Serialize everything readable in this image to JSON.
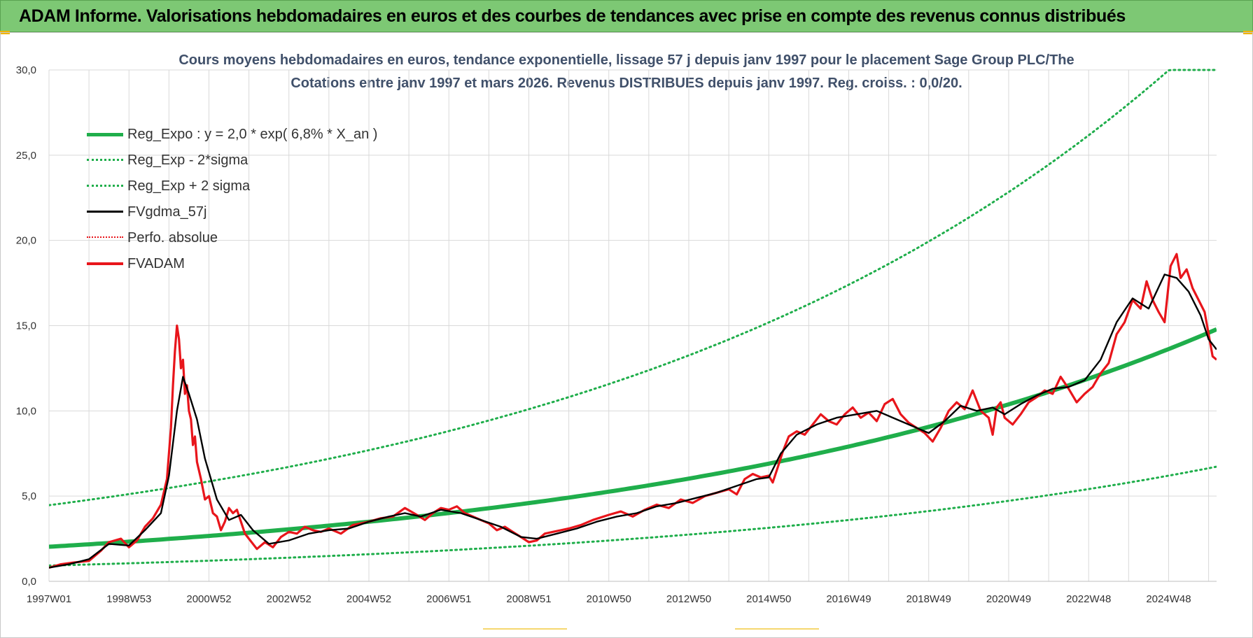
{
  "header": {
    "title": "ADAM Informe. Valorisations hebdomadaires en euros et des courbes de tendances avec prise en compte des revenus connus distribués"
  },
  "colors": {
    "banner": "#7dc874",
    "trend": "#1fae4b",
    "smooth": "#000000",
    "adam": "#e8151b",
    "perf": "#e8151b",
    "grid": "#d9d9d9"
  },
  "chart_data": {
    "type": "line",
    "title_line1": "Cours moyens hebdomadaires en euros, tendance exponentielle, lissage 57 j depuis janv 1997 pour le placement Sage Group PLC/The",
    "title_line2": "Cotations entre janv 1997 et mars 2026. Revenus DISTRIBUES depuis janv 1997.  Reg. croiss. : 0,0/20.",
    "xlabel": "",
    "ylabel": "",
    "xlim": [
      1997.0,
      2026.2
    ],
    "ylim": [
      0,
      30
    ],
    "y_ticks": [
      "0,0",
      "5,0",
      "10,0",
      "15,0",
      "20,0",
      "25,0",
      "30,0"
    ],
    "x_ticks": [
      {
        "label": "1997W01",
        "x": 1997.0
      },
      {
        "label": "1998W53",
        "x": 1999.0
      },
      {
        "label": "2000W52",
        "x": 2001.0
      },
      {
        "label": "2002W52",
        "x": 2003.0
      },
      {
        "label": "2004W52",
        "x": 2005.0
      },
      {
        "label": "2006W51",
        "x": 2007.0
      },
      {
        "label": "2008W51",
        "x": 2009.0
      },
      {
        "label": "2010W50",
        "x": 2011.0
      },
      {
        "label": "2012W50",
        "x": 2013.0
      },
      {
        "label": "2014W50",
        "x": 2015.0
      },
      {
        "label": "2016W49",
        "x": 2017.0
      },
      {
        "label": "2018W49",
        "x": 2019.0
      },
      {
        "label": "2020W49",
        "x": 2021.0
      },
      {
        "label": "2022W48",
        "x": 2023.0
      },
      {
        "label": "2024W48",
        "x": 2025.0
      }
    ],
    "legend": [
      {
        "name": "Reg_Expo : y = 2,0 * exp( 6,8% *  X_an )",
        "style": "trend-solid"
      },
      {
        "name": "Reg_Exp - 2*sigma",
        "style": "trend-dotted"
      },
      {
        "name": "Reg_Exp + 2 sigma",
        "style": "trend-dotted"
      },
      {
        "name": "FVgdma_57j",
        "style": "black-solid"
      },
      {
        "name": "Perfo. absolue",
        "style": "red-dotted"
      },
      {
        "name": "FVADAM",
        "style": "red-solid"
      }
    ],
    "trend": {
      "a": 2.03,
      "rate": 0.068,
      "lower_factor": 0.455,
      "upper_factor": 2.2
    },
    "series": [
      {
        "name": "FVADAM",
        "x": [
          1997.0,
          1997.3,
          1997.6,
          1998.0,
          1998.3,
          1998.5,
          1998.8,
          1999.0,
          1999.2,
          1999.4,
          1999.6,
          1999.8,
          1999.95,
          2000.05,
          2000.1,
          2000.15,
          2000.2,
          2000.25,
          2000.3,
          2000.35,
          2000.4,
          2000.45,
          2000.5,
          2000.55,
          2000.6,
          2000.65,
          2000.7,
          2000.8,
          2000.9,
          2001.0,
          2001.1,
          2001.2,
          2001.3,
          2001.4,
          2001.5,
          2001.6,
          2001.7,
          2001.8,
          2001.9,
          2002.0,
          2002.2,
          2002.4,
          2002.6,
          2002.8,
          2003.0,
          2003.2,
          2003.4,
          2003.6,
          2003.8,
          2004.0,
          2004.3,
          2004.6,
          2005.0,
          2005.3,
          2005.6,
          2005.9,
          2006.2,
          2006.4,
          2006.6,
          2006.8,
          2007.0,
          2007.2,
          2007.4,
          2007.6,
          2007.8,
          2008.0,
          2008.2,
          2008.4,
          2008.6,
          2008.8,
          2009.0,
          2009.2,
          2009.4,
          2009.6,
          2009.8,
          2010.0,
          2010.3,
          2010.6,
          2011.0,
          2011.3,
          2011.6,
          2011.9,
          2012.2,
          2012.5,
          2012.8,
          2013.1,
          2013.4,
          2013.7,
          2014.0,
          2014.2,
          2014.4,
          2014.6,
          2014.8,
          2015.0,
          2015.1,
          2015.2,
          2015.35,
          2015.5,
          2015.7,
          2015.9,
          2016.1,
          2016.3,
          2016.5,
          2016.7,
          2016.9,
          2017.1,
          2017.3,
          2017.5,
          2017.7,
          2017.9,
          2018.1,
          2018.3,
          2018.5,
          2018.7,
          2018.9,
          2019.1,
          2019.3,
          2019.5,
          2019.7,
          2019.9,
          2020.1,
          2020.3,
          2020.5,
          2020.6,
          2020.7,
          2020.8,
          2020.9,
          2021.1,
          2021.3,
          2021.5,
          2021.7,
          2021.9,
          2022.1,
          2022.3,
          2022.5,
          2022.7,
          2022.9,
          2023.1,
          2023.3,
          2023.5,
          2023.7,
          2023.9,
          2024.1,
          2024.3,
          2024.45,
          2024.6,
          2024.75,
          2024.9,
          2025.05,
          2025.2,
          2025.3,
          2025.45,
          2025.6,
          2025.75,
          2025.9,
          2026.0,
          2026.1,
          2026.2
        ],
        "values": [
          0.8,
          1.0,
          1.1,
          1.2,
          1.8,
          2.3,
          2.5,
          2.0,
          2.4,
          3.2,
          3.7,
          4.5,
          6.0,
          9.0,
          11.5,
          13.5,
          15.0,
          14.2,
          12.5,
          13.0,
          11.0,
          11.5,
          10.0,
          9.5,
          8.0,
          8.5,
          7.0,
          6.0,
          4.8,
          5.0,
          4.0,
          3.8,
          3.0,
          3.5,
          4.3,
          4.0,
          4.2,
          3.5,
          2.8,
          2.5,
          1.9,
          2.3,
          2.0,
          2.6,
          2.9,
          2.8,
          3.2,
          3.0,
          2.9,
          3.1,
          2.8,
          3.3,
          3.5,
          3.7,
          3.8,
          4.3,
          3.9,
          3.6,
          4.0,
          4.3,
          4.2,
          4.4,
          4.0,
          3.8,
          3.6,
          3.4,
          3.0,
          3.2,
          2.9,
          2.6,
          2.3,
          2.4,
          2.8,
          2.9,
          3.0,
          3.1,
          3.3,
          3.6,
          3.9,
          4.1,
          3.8,
          4.2,
          4.5,
          4.3,
          4.8,
          4.6,
          5.0,
          5.2,
          5.4,
          5.1,
          6.0,
          6.3,
          6.1,
          6.2,
          5.8,
          6.5,
          7.6,
          8.5,
          8.8,
          8.6,
          9.2,
          9.8,
          9.4,
          9.2,
          9.8,
          10.2,
          9.6,
          9.9,
          9.4,
          10.4,
          10.7,
          9.8,
          9.3,
          9.0,
          8.7,
          8.2,
          9.0,
          10.0,
          10.5,
          10.1,
          11.2,
          10.0,
          9.6,
          8.6,
          10.2,
          10.5,
          9.6,
          9.2,
          9.8,
          10.5,
          10.8,
          11.2,
          11.0,
          12.0,
          11.3,
          10.5,
          11.0,
          11.4,
          12.2,
          12.8,
          14.5,
          15.2,
          16.5,
          16.0,
          17.6,
          16.5,
          15.8,
          15.2,
          18.5,
          19.2,
          17.8,
          18.3,
          17.2,
          16.5,
          15.8,
          14.5,
          13.2,
          13.0
        ]
      },
      {
        "name": "FVgdma_57j",
        "x": [
          1997.0,
          1997.5,
          1998.0,
          1998.5,
          1999.0,
          1999.4,
          1999.8,
          2000.0,
          2000.2,
          2000.35,
          2000.5,
          2000.7,
          2000.9,
          2001.2,
          2001.5,
          2001.8,
          2002.1,
          2002.5,
          2003.0,
          2003.5,
          2004.0,
          2004.5,
          2005.0,
          2005.5,
          2005.9,
          2006.3,
          2006.8,
          2007.3,
          2007.8,
          2008.3,
          2008.8,
          2009.2,
          2009.7,
          2010.2,
          2010.7,
          2011.2,
          2011.7,
          2012.2,
          2012.7,
          2013.2,
          2013.7,
          2014.2,
          2014.7,
          2015.0,
          2015.3,
          2015.7,
          2016.2,
          2016.7,
          2017.2,
          2017.7,
          2018.2,
          2018.7,
          2019.0,
          2019.4,
          2019.8,
          2020.2,
          2020.6,
          2020.9,
          2021.3,
          2021.7,
          2022.1,
          2022.5,
          2022.9,
          2023.3,
          2023.7,
          2024.1,
          2024.5,
          2024.9,
          2025.2,
          2025.5,
          2025.8,
          2026.0,
          2026.2
        ],
        "values": [
          0.8,
          1.0,
          1.3,
          2.2,
          2.1,
          3.0,
          4.0,
          6.2,
          10.0,
          12.0,
          11.0,
          9.5,
          7.2,
          4.8,
          3.6,
          3.9,
          3.0,
          2.2,
          2.4,
          2.8,
          3.0,
          3.1,
          3.5,
          3.8,
          4.0,
          3.8,
          4.2,
          4.0,
          3.6,
          3.2,
          2.6,
          2.5,
          2.8,
          3.1,
          3.5,
          3.8,
          4.0,
          4.4,
          4.6,
          4.9,
          5.2,
          5.6,
          6.0,
          6.1,
          7.5,
          8.6,
          9.2,
          9.6,
          9.8,
          10.0,
          9.5,
          9.0,
          8.7,
          9.4,
          10.3,
          10.0,
          10.2,
          9.8,
          10.4,
          10.9,
          11.3,
          11.4,
          11.8,
          13.0,
          15.2,
          16.6,
          16.0,
          18.0,
          17.8,
          17.0,
          15.6,
          14.2,
          13.6
        ]
      }
    ]
  }
}
